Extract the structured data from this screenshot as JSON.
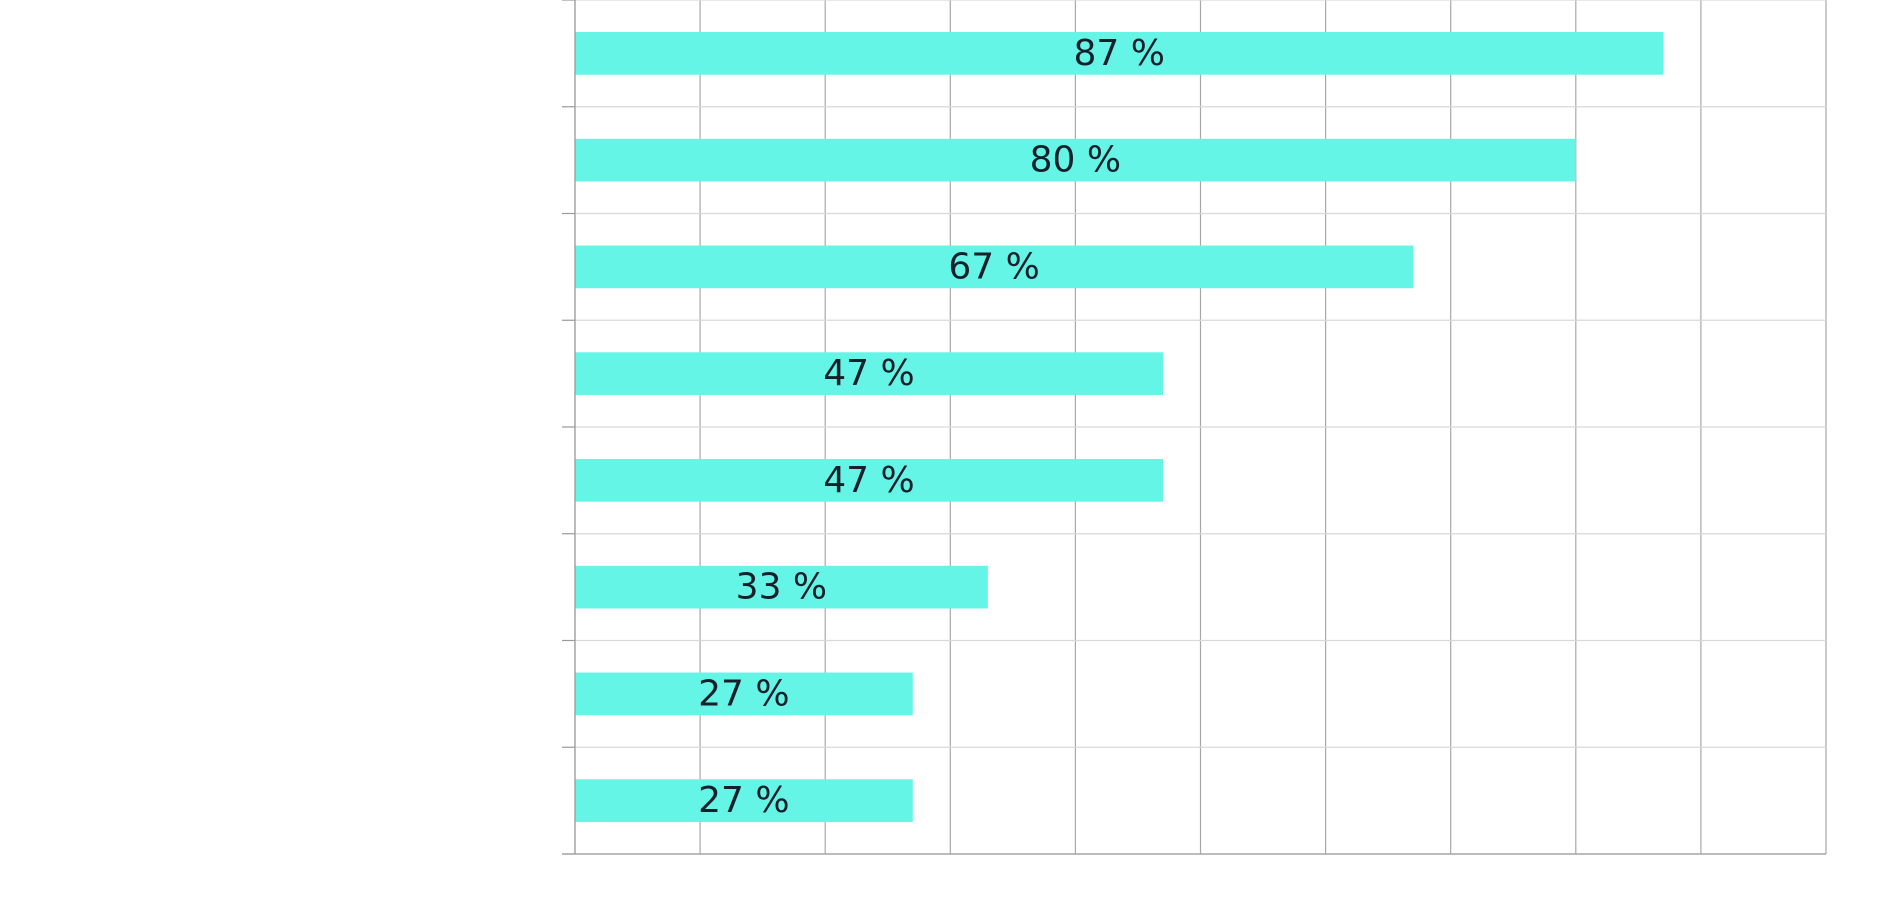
{
  "chart_data": {
    "type": "bar",
    "orientation": "horizontal",
    "title": "",
    "xlabel": "",
    "ylabel": "",
    "xlim": [
      0,
      100
    ],
    "x_gridlines": [
      0,
      10,
      20,
      30,
      40,
      50,
      60,
      70,
      80,
      90,
      100
    ],
    "grid": true,
    "legend": "none",
    "categories": [
      "",
      "",
      "",
      "",
      "",
      "",
      "",
      ""
    ],
    "values": [
      87,
      80,
      67,
      47,
      47,
      33,
      27,
      27
    ],
    "labels": [
      "87 %",
      "80 %",
      "67 %",
      "47 %",
      "47 %",
      "33 %",
      "27 %",
      "27 %"
    ],
    "bar_color": "#64f5e6",
    "label_color": "#17202a"
  }
}
